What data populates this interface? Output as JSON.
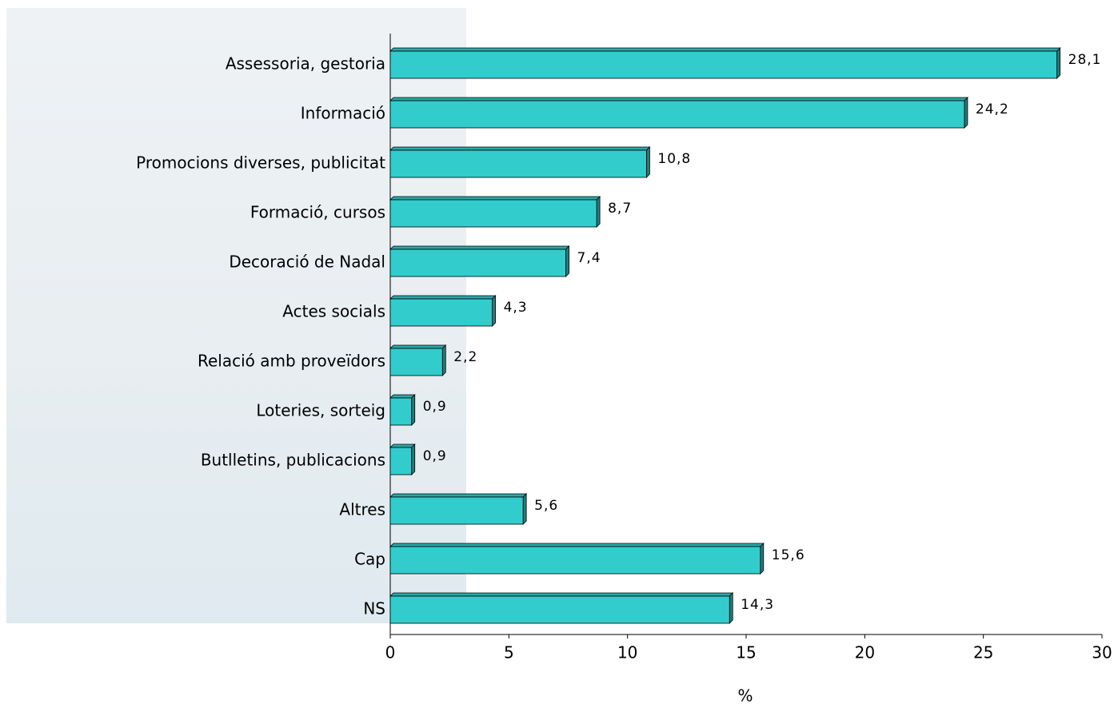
{
  "chart_data": {
    "type": "bar",
    "orientation": "horizontal",
    "categories": [
      "Assessoria, gestoria",
      "Informació",
      "Promocions diverses, publicitat",
      "Formació, cursos",
      "Decoració de Nadal",
      "Actes socials",
      "Relació amb proveïdors",
      "Loteries, sorteig",
      "Butlletins, publicacions",
      "Altres",
      "Cap",
      "NS"
    ],
    "values": [
      28.1,
      24.2,
      10.8,
      8.7,
      7.4,
      4.3,
      2.2,
      0.9,
      0.9,
      5.6,
      15.6,
      14.3
    ],
    "value_labels": [
      "28,1",
      "24,2",
      "10,8",
      "8,7",
      "7,4",
      "4,3",
      "2,2",
      "0,9",
      "0,9",
      "5,6",
      "15,6",
      "14,3"
    ],
    "color": "#33cccc",
    "xlim": [
      0,
      30
    ],
    "xticks": [
      0,
      5,
      10,
      15,
      20,
      25,
      30
    ],
    "xlabel": "%"
  }
}
